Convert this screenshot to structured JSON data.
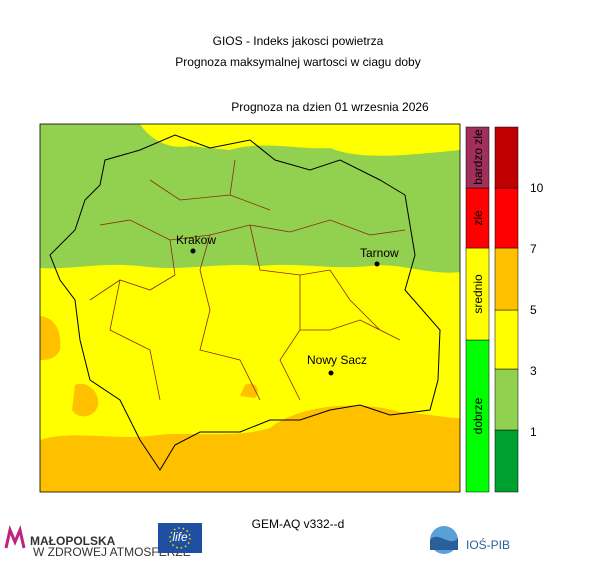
{
  "header": {
    "title": "GIOS - Indeks jakosci powietrza",
    "subtitle": "Prognoza maksymalnej wartosci w ciagu doby",
    "date_line": "Prognoza na dzien  01 wrzesnia 2026"
  },
  "map": {
    "cities": [
      {
        "name": "Krakow"
      },
      {
        "name": "Tarnow"
      },
      {
        "name": "Nowy Sacz"
      }
    ]
  },
  "legend": {
    "categories": [
      "dobrze",
      "srednio",
      "zle",
      "bardzo zle"
    ],
    "ticks": [
      1,
      3,
      5,
      7,
      10
    ]
  },
  "footer": {
    "left_logo": "MAŁOPOLSKA",
    "left_tagline": "W ZDROWEJ ATMOSFERZE",
    "eu_logo": "life",
    "model": "GEM-AQ v332--d",
    "right_logo": "IOŚ-PIB"
  }
}
